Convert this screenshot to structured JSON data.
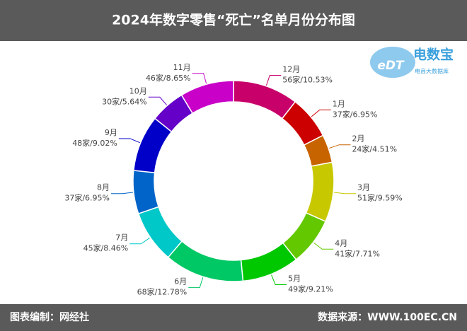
{
  "chart_data": {
    "type": "donut",
    "title": "2024年数字零售“死亡”名单月份分布图",
    "categories": [
      "12月",
      "1月",
      "2月",
      "3月",
      "4月",
      "5月",
      "6月",
      "7月",
      "8月",
      "9月",
      "10月",
      "11月"
    ],
    "values": [
      56,
      37,
      24,
      51,
      41,
      49,
      68,
      45,
      37,
      48,
      30,
      46
    ],
    "value_labels": [
      "56家/10.53%",
      "37家/6.95%",
      "24家/4.51%",
      "51家/9.59%",
      "41家/7.71%",
      "49家/9.21%",
      "68家/12.78%",
      "45家/8.46%",
      "37家/6.95%",
      "48家/9.02%",
      "30家/5.64%",
      "46家/8.65%"
    ],
    "colors": [
      "#c8006a",
      "#cc0000",
      "#c86400",
      "#c8c800",
      "#64c800",
      "#00c800",
      "#00c864",
      "#00c8c8",
      "#0064c8",
      "#0000c8",
      "#6400c8",
      "#c800c8"
    ]
  },
  "logo": {
    "mark": "eDT",
    "name": "电数宝",
    "tagline": "电商大数据库"
  },
  "footer": {
    "left": "图表编制：网经社",
    "right": "数据来源：WWW.100EC.CN"
  }
}
